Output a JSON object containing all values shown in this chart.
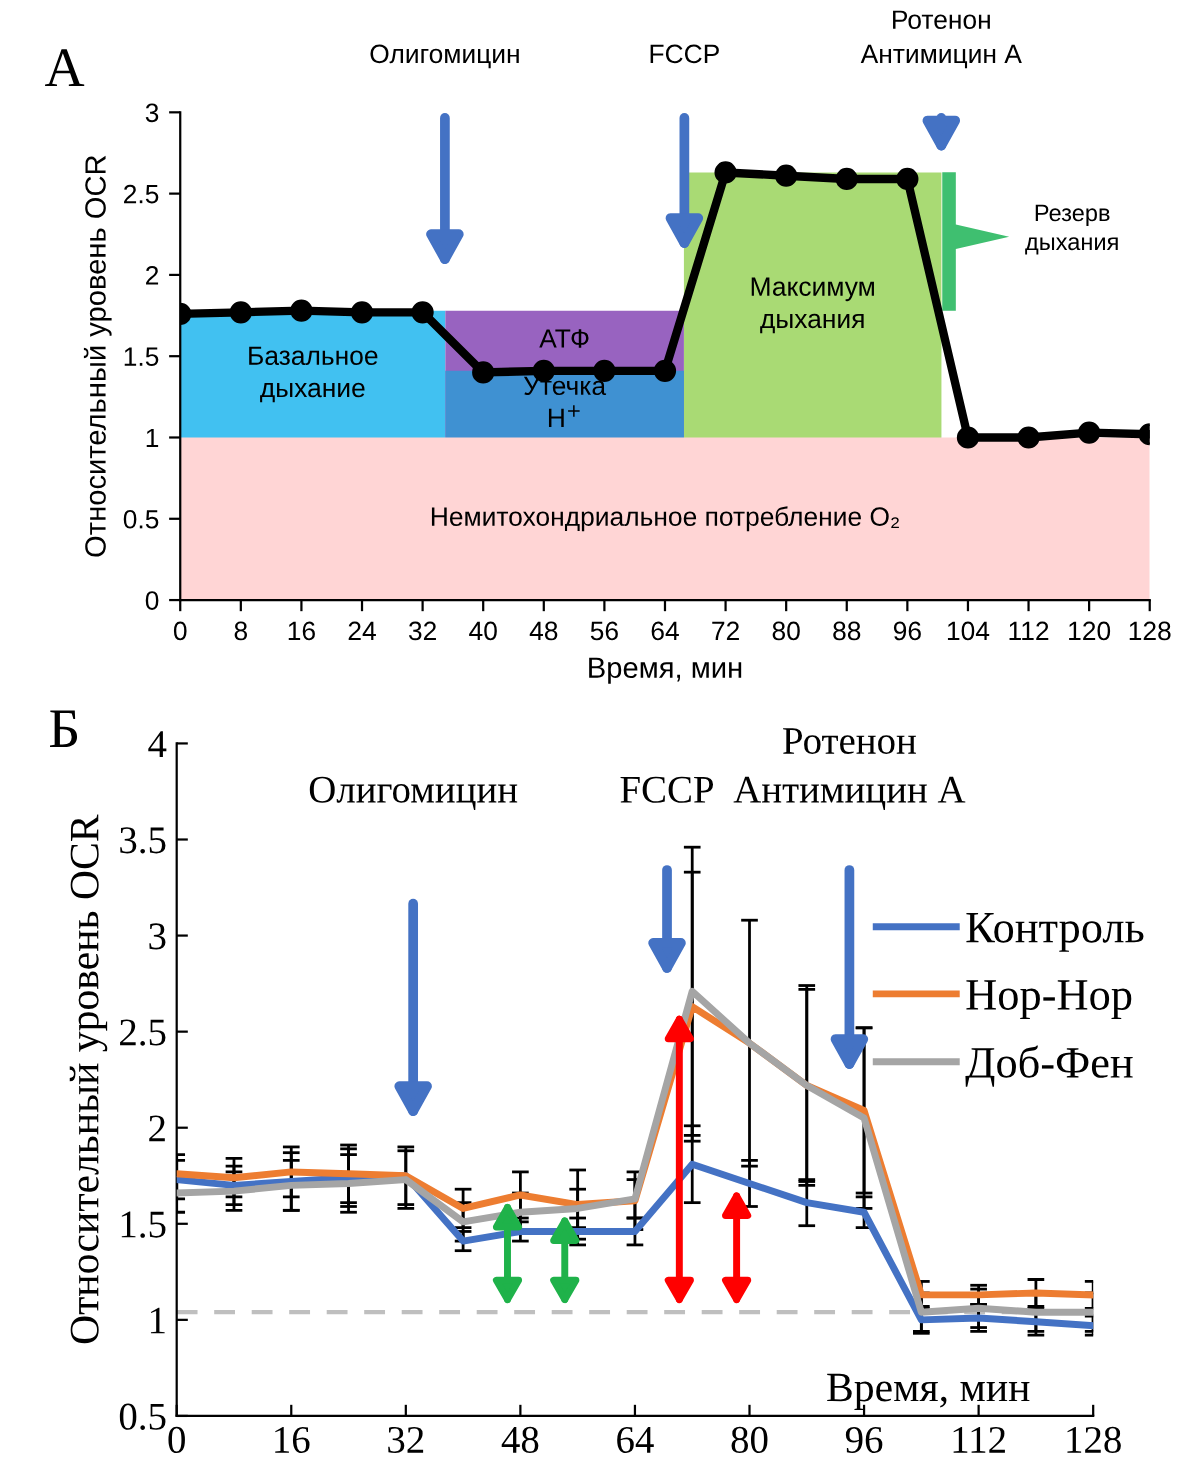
{
  "chart_data": [
    {
      "type": "line",
      "title": "А",
      "xlabel": "Время, мин",
      "ylabel": "Относительный уровень OCR",
      "x": [
        0,
        8,
        16,
        24,
        32,
        40,
        48,
        56,
        64,
        72,
        80,
        88,
        96,
        104,
        112,
        120,
        128
      ],
      "xlim": [
        0,
        128
      ],
      "xticks": [
        0,
        8,
        16,
        24,
        32,
        40,
        48,
        56,
        64,
        72,
        80,
        88,
        96,
        104,
        112,
        120,
        128
      ],
      "ylim": [
        0,
        3
      ],
      "yticks": [
        0,
        0.5,
        1,
        1.5,
        2,
        2.5,
        3
      ],
      "grid": false,
      "series": [
        {
          "type": "area",
          "name": "Базальное дыхание",
          "color": "#41c1f1",
          "x": [
            0,
            35
          ],
          "values": [
            1.78,
            1.78
          ]
        },
        {
          "type": "area",
          "name": "АТФ",
          "color": "#9863c0",
          "x": [
            35,
            66.5
          ],
          "values": [
            1.78,
            1.78
          ]
        },
        {
          "type": "area",
          "name": "Утечка H$^{+}$",
          "color": "#3f91d2",
          "x": [
            35,
            66.5
          ],
          "values": [
            1.41,
            1.41
          ]
        },
        {
          "type": "area",
          "name": "Максимум дыхания",
          "color": "#a9da74",
          "x": [
            66.5,
            100.5
          ],
          "values": [
            2.63,
            2.63
          ]
        },
        {
          "type": "line",
          "color": "#000000",
          "marker": "circle",
          "values": [
            1.76,
            1.77,
            1.78,
            1.77,
            1.77,
            1.4,
            1.41,
            1.41,
            1.41,
            2.63,
            2.61,
            2.59,
            2.59,
            1.0,
            1.0,
            1.03,
            1.02
          ]
        }
      ],
      "bands": [
        {
          "axis": "y",
          "from": 0,
          "to": 1,
          "label": "Немитохондриальное потребление O₂",
          "color": "#ffd5d5"
        }
      ],
      "annotations": [
        "Олигомицин",
        "FCCP",
        "Ротенон\nАнтимицин А",
        "Резерв\nдыхания"
      ]
    },
    {
      "type": "line",
      "title": "Б",
      "xlabel": "Время, мин",
      "ylabel": "Относительный уровень OCR",
      "x": [
        0,
        8,
        16,
        24,
        32,
        40,
        48,
        56,
        64,
        72,
        80,
        88,
        96,
        104,
        112,
        120,
        128
      ],
      "xlim": [
        0,
        128
      ],
      "xticks": [
        0,
        16,
        32,
        48,
        64,
        80,
        96,
        112,
        128
      ],
      "ylim": [
        0.5,
        4
      ],
      "yticks": [
        0.5,
        1,
        1.5,
        2,
        2.5,
        3,
        3.5,
        4
      ],
      "grid": false,
      "legend": "right",
      "marker": "none",
      "series": [
        {
          "name": "Контроль",
          "color": "#4472c4",
          "values": [
            1.73,
            1.7,
            1.72,
            1.74,
            1.75,
            1.41,
            1.46,
            1.46,
            1.46,
            1.81,
            1.71,
            1.61,
            1.56,
            1.0,
            1.01,
            0.99,
            0.97
          ],
          "errors": [
            0.1,
            0.1,
            0.15,
            0.15,
            0.15,
            0.05,
            0.05,
            0.07,
            0.07,
            0.2,
            0.12,
            0.12,
            0.08,
            0.07,
            0.07,
            0.07,
            0.05
          ]
        },
        {
          "name": "Нор-Нор",
          "color": "#ed7d31",
          "values": [
            1.76,
            1.74,
            1.77,
            1.76,
            1.75,
            1.58,
            1.65,
            1.6,
            1.62,
            2.63,
            2.44,
            2.22,
            2.09,
            1.13,
            1.13,
            1.14,
            1.13
          ],
          "errors": [
            0.1,
            0.1,
            0.13,
            0.15,
            null,
            0.1,
            0.12,
            0.18,
            0.15,
            0.7,
            0.64,
            0.5,
            0.43,
            0.07,
            0.05,
            0.07,
            0.07
          ]
        },
        {
          "name": "Доб-Фен",
          "color": "#a5a5a5",
          "values": [
            1.66,
            1.67,
            1.7,
            1.71,
            1.73,
            1.51,
            1.56,
            1.58,
            1.63,
            2.71,
            2.44,
            2.22,
            2.05,
            1.04,
            1.06,
            1.04,
            1.04
          ],
          "errors": [
            0.1,
            0.1,
            0.13,
            0.15,
            0.15,
            0.1,
            0.1,
            0.1,
            0.1,
            0.75,
            null,
            0.52,
            0.47,
            0.1,
            0.1,
            0.1,
            0.1
          ]
        }
      ],
      "ref_lines": [
        {
          "axis": "y",
          "value": 1.04,
          "color": "#bfbfbf",
          "line_style": "dashed"
        }
      ],
      "annotations": [
        "Олигомицин",
        "FCCP",
        "Ротенон\nАнтимицин А"
      ]
    }
  ]
}
